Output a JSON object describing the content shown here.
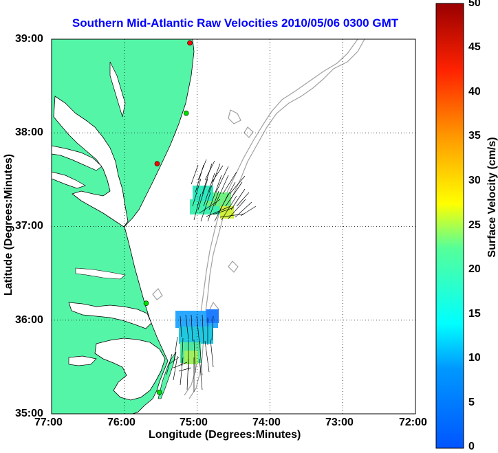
{
  "title": "Southern Mid-Atlantic Raw Velocities 2010/05/06 0300 GMT",
  "x_axis": {
    "label": "Longitude (Degrees:Minutes)",
    "ticks": [
      "77:00",
      "76:00",
      "75:00",
      "74:00",
      "73:00",
      "72:00"
    ]
  },
  "y_axis": {
    "label": "Latitude (Degrees:Minutes)",
    "ticks": [
      "39:00",
      "38:00",
      "37:00",
      "36:00",
      "35:00"
    ]
  },
  "colorbar": {
    "label": "Surface Velocity (cm/s)",
    "ticks": [
      "50",
      "45",
      "40",
      "35",
      "30",
      "25",
      "20",
      "15",
      "10",
      "5",
      "0"
    ],
    "range": [
      0,
      50
    ],
    "colormap": "jet"
  },
  "map": {
    "grid": "dotted",
    "land_color": "#55f5a8",
    "bathymetry_color": "#a0a0a0",
    "vector_color": "#000000",
    "stations": [
      {
        "lon": -75.1,
        "lat": 38.96,
        "color": "#ff0000"
      },
      {
        "lon": -75.15,
        "lat": 38.21,
        "color": "#00dd00"
      },
      {
        "lon": -75.55,
        "lat": 37.67,
        "color": "#ff0000"
      },
      {
        "lon": -75.7,
        "lat": 36.18,
        "color": "#00dd00"
      },
      {
        "lon": -75.52,
        "lat": 35.23,
        "color": "#00dd00"
      }
    ]
  }
}
